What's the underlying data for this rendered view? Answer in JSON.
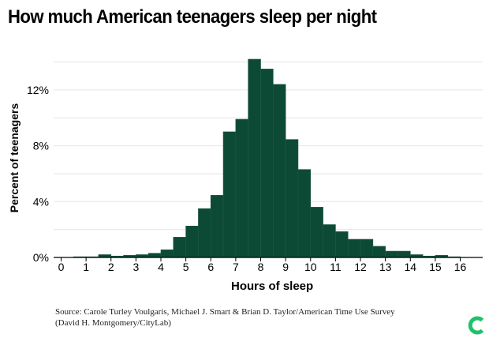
{
  "title": "How much American teenagers sleep per night",
  "source_line1": "Source: Carole Turley Voulgaris, Michael J. Smart & Brian D. Taylor/American Time Use Survey",
  "source_line2": "(David H. Montgomery/CityLab)",
  "logo": {
    "icon": "citylab-logo-icon",
    "color": "#1fc26b"
  },
  "chart_data": {
    "type": "bar",
    "title": "How much American teenagers sleep per night",
    "xlabel": "Hours of sleep",
    "ylabel": "Percent of teenagers",
    "bin_width": 0.5,
    "bins_start": [
      0,
      0.5,
      1,
      1.5,
      2,
      2.5,
      3,
      3.5,
      4,
      4.5,
      5,
      5.5,
      6,
      6.5,
      7,
      7.5,
      8,
      8.5,
      9,
      9.5,
      10,
      10.5,
      11,
      11.5,
      12,
      12.5,
      13,
      13.5,
      14,
      14.5,
      15,
      15.5,
      16
    ],
    "values": [
      0,
      0.05,
      0.05,
      0.2,
      0.1,
      0.15,
      0.2,
      0.3,
      0.55,
      1.45,
      2.25,
      3.5,
      4.45,
      9.0,
      9.9,
      14.2,
      13.5,
      12.4,
      8.45,
      6.3,
      3.6,
      2.35,
      1.85,
      1.3,
      1.3,
      0.8,
      0.45,
      0.45,
      0.2,
      0.1,
      0.15,
      0.05,
      0
    ],
    "xticks": [
      0,
      1,
      2,
      3,
      4,
      5,
      6,
      7,
      8,
      9,
      10,
      11,
      12,
      13,
      14,
      15,
      16
    ],
    "yticks": [
      0,
      4,
      8,
      12
    ],
    "ytick_labels": [
      "0%",
      "4%",
      "8%",
      "12%"
    ],
    "xlim": [
      -0.3,
      16.9
    ],
    "ylim": [
      0,
      14.2
    ],
    "bar_color": "#0d4a35",
    "grid": true
  }
}
